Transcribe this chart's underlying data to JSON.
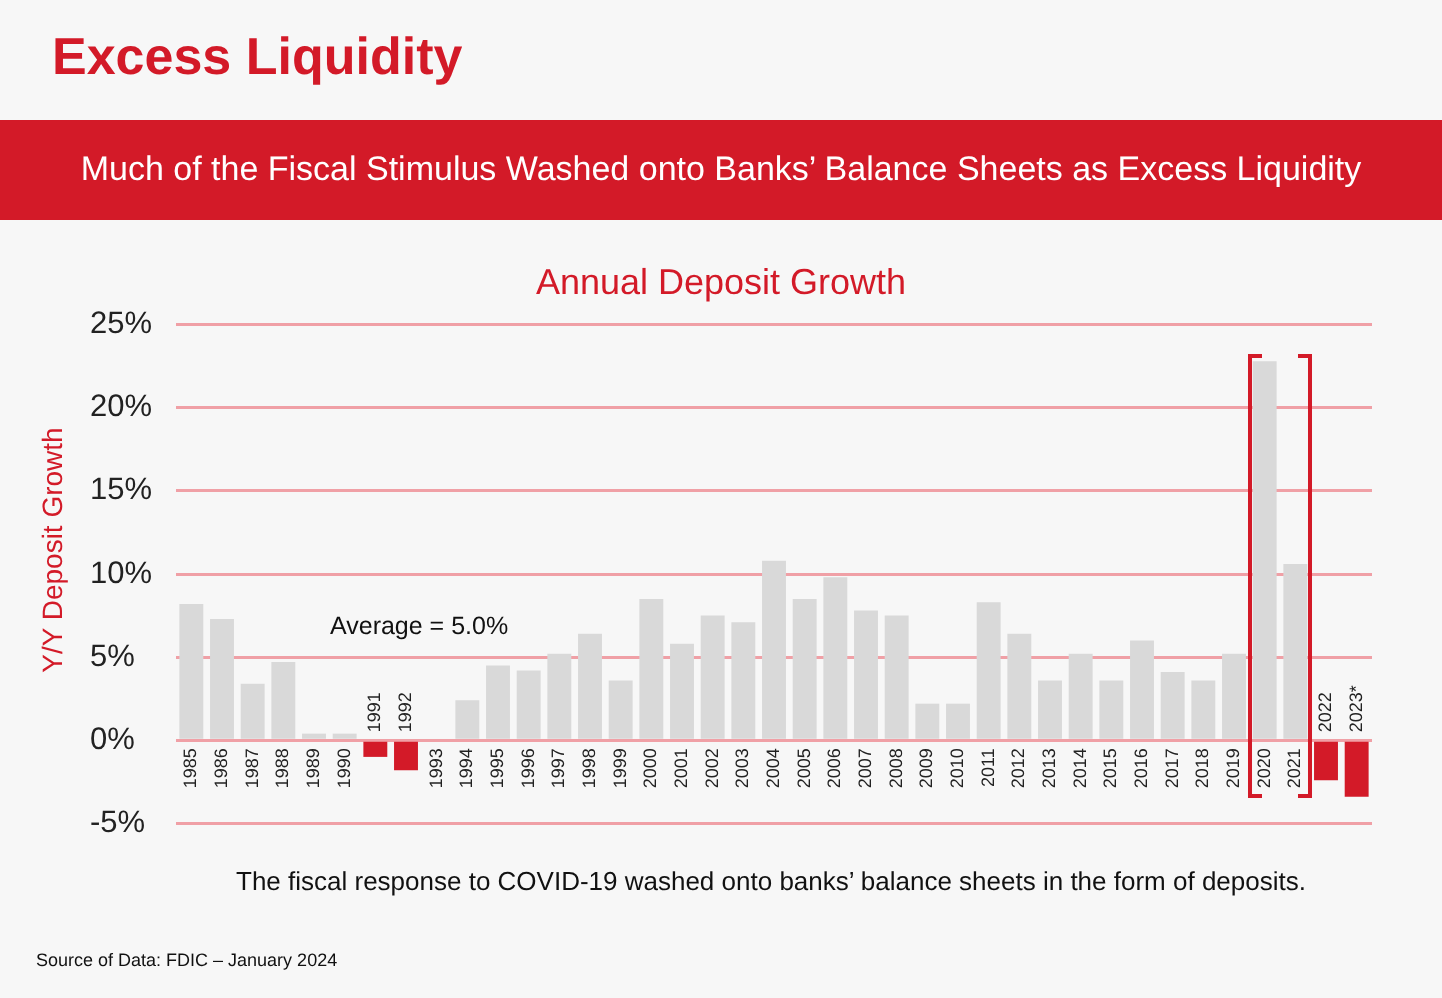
{
  "chart_data": {
    "type": "bar",
    "title": "Excess Liquidity",
    "subtitle": "Much of the Fiscal Stimulus Washed onto Banks’ Balance Sheets as Excess Liquidity",
    "ylabel": "Y/Y Deposit Growth",
    "annotations": [
      "Annual Deposit Growth",
      "Average = 5.0%",
      "The fiscal response to COVID-19 washed onto banks’ balance sheets in the form of deposits.",
      "Source of Data: FDIC – January 2024"
    ],
    "categories": [
      "1985",
      "1986",
      "1987",
      "1988",
      "1989",
      "1990",
      "1991",
      "1992",
      "1993",
      "1994",
      "1995",
      "1996",
      "1997",
      "1998",
      "1999",
      "2000",
      "2001",
      "2002",
      "2003",
      "2004",
      "2005",
      "2006",
      "2007",
      "2008",
      "2009",
      "2010",
      "2011",
      "2012",
      "2013",
      "2014",
      "2015",
      "2016",
      "2017",
      "2018",
      "2019",
      "2020",
      "2021",
      "2022",
      "2023*"
    ],
    "values": [
      8.2,
      7.3,
      3.4,
      4.7,
      0.4,
      0.4,
      -1.0,
      -1.8,
      0,
      2.4,
      4.5,
      4.2,
      5.2,
      6.4,
      3.6,
      8.5,
      5.8,
      7.5,
      7.1,
      10.8,
      8.5,
      9.8,
      7.8,
      7.5,
      2.2,
      2.2,
      8.3,
      6.4,
      3.6,
      5.2,
      3.6,
      6.0,
      4.1,
      3.6,
      5.2,
      22.8,
      10.6,
      -2.4,
      -3.4
    ],
    "colors": [
      "#d9d9d9",
      "#d9d9d9",
      "#d9d9d9",
      "#d9d9d9",
      "#d9d9d9",
      "#d9d9d9",
      "#d31a28",
      "#d31a28",
      "#d9d9d9",
      "#d9d9d9",
      "#d9d9d9",
      "#d9d9d9",
      "#d9d9d9",
      "#d9d9d9",
      "#d9d9d9",
      "#d9d9d9",
      "#d9d9d9",
      "#d9d9d9",
      "#d9d9d9",
      "#d9d9d9",
      "#d9d9d9",
      "#d9d9d9",
      "#d9d9d9",
      "#d9d9d9",
      "#d9d9d9",
      "#d9d9d9",
      "#d9d9d9",
      "#d9d9d9",
      "#d9d9d9",
      "#d9d9d9",
      "#d9d9d9",
      "#d9d9d9",
      "#d9d9d9",
      "#d9d9d9",
      "#d9d9d9",
      "#d9d9d9",
      "#d9d9d9",
      "#d31a28",
      "#d31a28"
    ],
    "ylim": [
      -5,
      25
    ],
    "yticks": [
      {
        "value": -5,
        "label": "-5%"
      },
      {
        "value": 0,
        "label": "0%"
      },
      {
        "value": 5,
        "label": "5%"
      },
      {
        "value": 10,
        "label": "10%"
      },
      {
        "value": 15,
        "label": "15%"
      },
      {
        "value": 20,
        "label": "20%"
      },
      {
        "value": 25,
        "label": "25%"
      }
    ],
    "grid": "y"
  }
}
